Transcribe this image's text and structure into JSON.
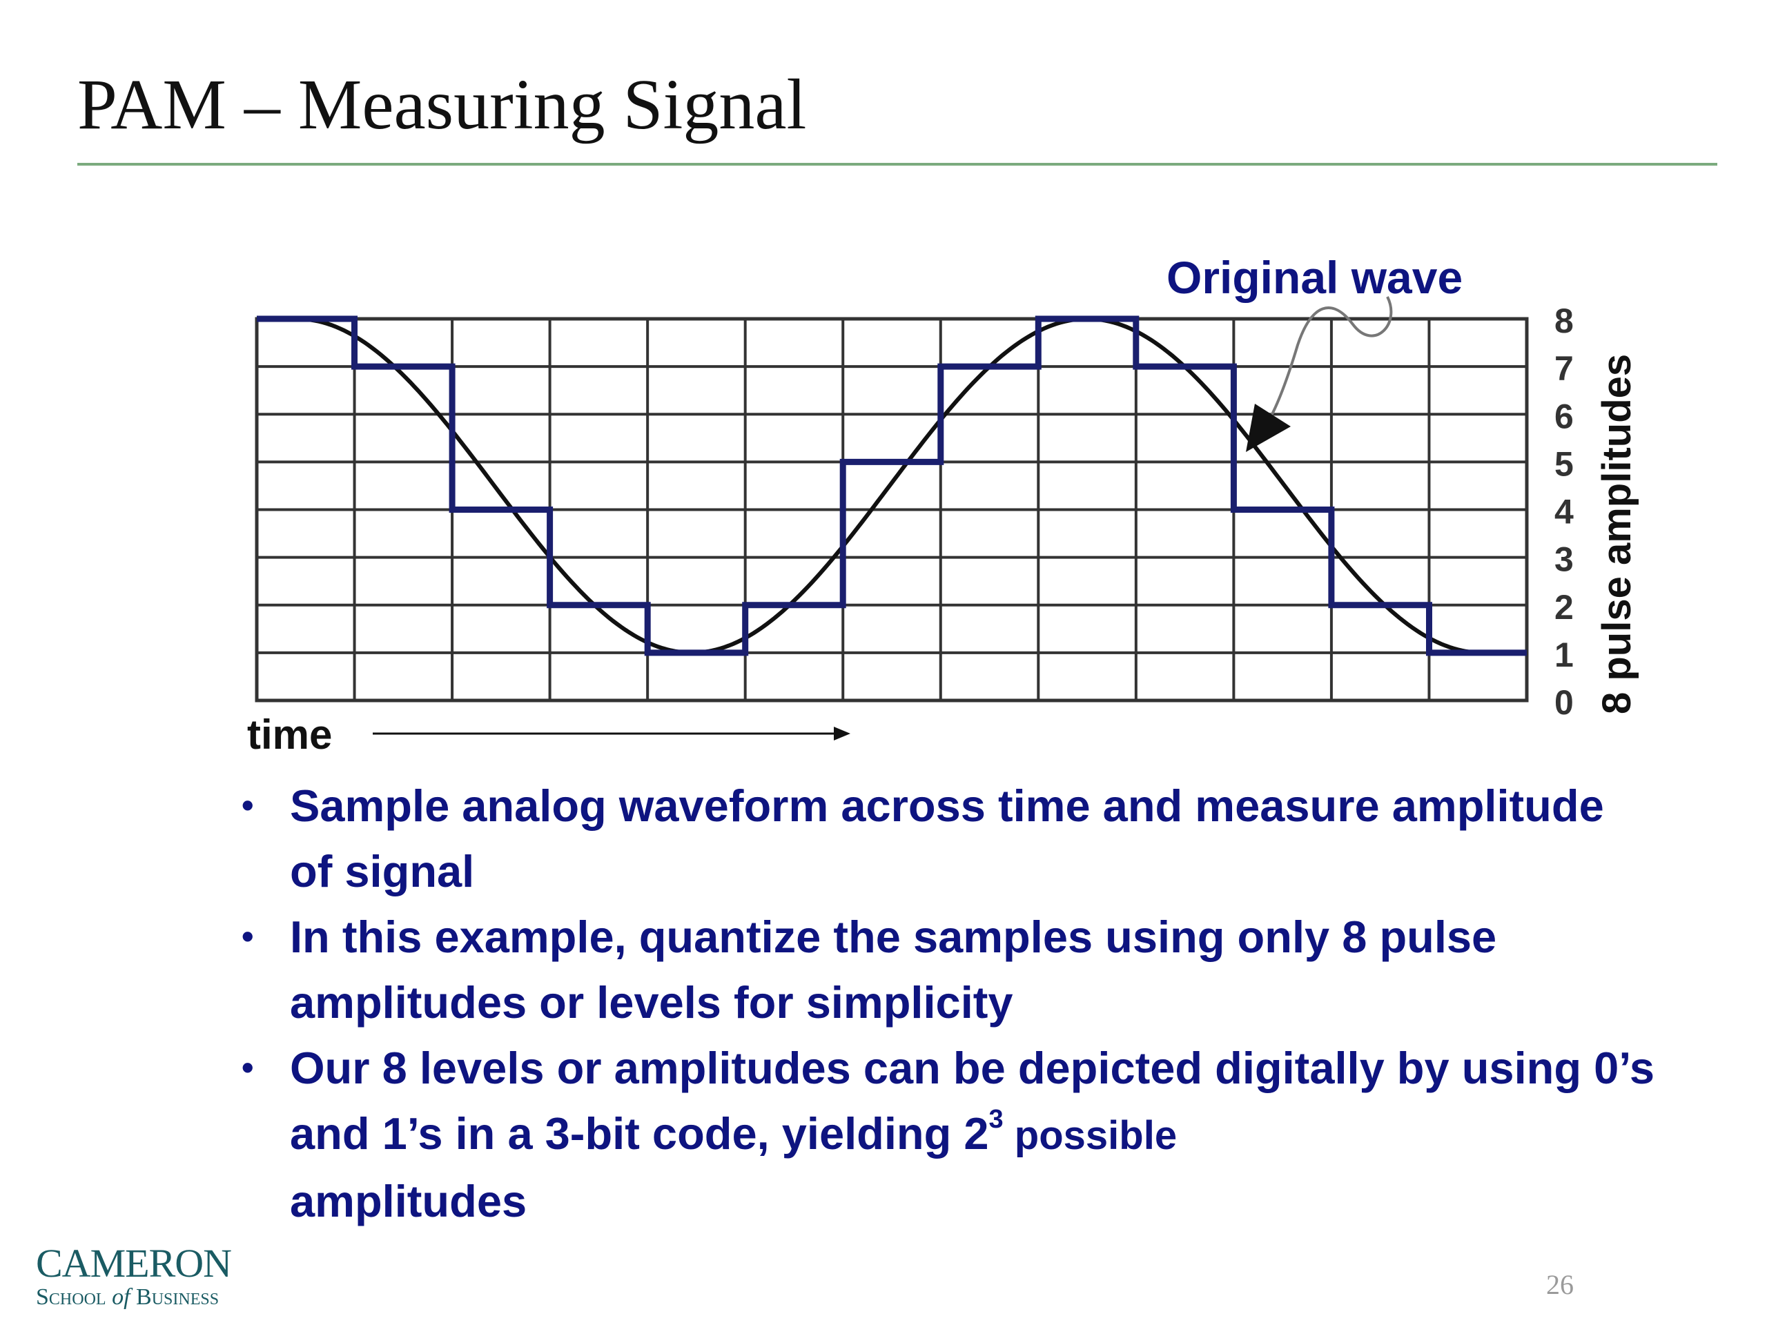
{
  "slide": {
    "title": "PAM – Measuring Signal",
    "page_number": "26"
  },
  "diagram": {
    "original_wave_label": "Original wave",
    "time_label": "time",
    "amplitude_axis_label": "8 pulse amplitudes",
    "level_labels": [
      "0",
      "1",
      "2",
      "3",
      "4",
      "5",
      "6",
      "7",
      "8"
    ],
    "sample_count": 13,
    "quantized_levels": [
      8,
      7,
      4,
      2,
      1,
      2,
      5,
      7,
      8,
      7,
      4,
      2,
      1
    ],
    "colors": {
      "grid": "#333333",
      "wave": "#111111",
      "quantized": "#1a1f6e",
      "label": "#0e1480"
    }
  },
  "bullets": [
    {
      "text": "Sample analog waveform across time and measure amplitude of signal"
    },
    {
      "text": "In this example, quantize the samples using only 8 pulse amplitudes or levels for simplicity"
    },
    {
      "text_before": "Our 8 levels or amplitudes can be depicted digitally by using 0’s and 1’s in a 3-bit code, yielding 2",
      "superscript": "3",
      "text_after": " possible",
      "text_end": "amplitudes"
    }
  ],
  "logo": {
    "line1": "CAMERON",
    "line2_a": "School ",
    "line2_b": "of",
    "line2_c": " Business"
  }
}
